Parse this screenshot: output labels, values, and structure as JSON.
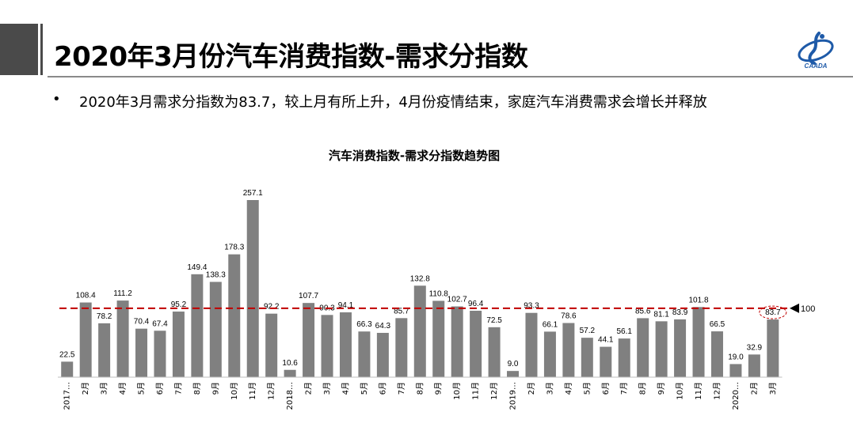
{
  "header": {
    "title": "2020年3月份汽车消费指数-需求分指数",
    "logo_icon": "caada-logo",
    "logo_text": "CAADA"
  },
  "bullet": {
    "symbol": "•",
    "text": "2020年3月需求分指数为83.7，较上月有所上升，4月份疫情结束，家庭汽车消费需求会增长并释放"
  },
  "colors": {
    "bar": "#808080",
    "reference_line": "#c00000",
    "highlight_circle": "#c00000",
    "accent": "#4a4a4a"
  },
  "chart_data": {
    "type": "bar",
    "title": "汽车消费指数-需求分指数趋势图",
    "xlabel": "",
    "ylabel": "",
    "ylim": [
      0,
      270
    ],
    "grid": false,
    "categories": [
      "2017…",
      "2月",
      "3月",
      "4月",
      "5月",
      "6月",
      "7月",
      "8月",
      "9月",
      "10月",
      "11月",
      "12月",
      "2018…",
      "2月",
      "3月",
      "4月",
      "5月",
      "6月",
      "7月",
      "8月",
      "9月",
      "10月",
      "11月",
      "12月",
      "2019…",
      "2月",
      "3月",
      "4月",
      "5月",
      "6月",
      "7月",
      "8月",
      "9月",
      "10月",
      "11月",
      "12月",
      "2020…",
      "2月",
      "3月"
    ],
    "values": [
      22.5,
      108.4,
      78.2,
      111.2,
      70.4,
      67.4,
      95.2,
      149.4,
      138.3,
      178.3,
      257.1,
      92.2,
      10.6,
      107.7,
      90.3,
      94.1,
      66.3,
      64.3,
      85.7,
      132.8,
      110.8,
      102.7,
      96.4,
      72.5,
      9.0,
      93.3,
      66.1,
      78.6,
      57.2,
      44.1,
      56.1,
      85.6,
      81.1,
      83.9,
      101.8,
      66.5,
      19.0,
      32.9,
      83.7
    ],
    "data_labels": [
      "22.5",
      "108.4",
      "78.2",
      "111.2",
      "70.4",
      "67.4",
      "95.2",
      "149.4",
      "138.3",
      "178.3",
      "257.1",
      "92.2",
      "10.6",
      "107.7",
      "90.3",
      "94.1",
      "66.3",
      "64.3",
      "85.7",
      "132.8",
      "110.8",
      "102.7",
      "96.4",
      "72.5",
      "9.0",
      "93.3",
      "66.1",
      "78.6",
      "57.2",
      "44.1",
      "56.1",
      "85.6",
      "81.1",
      "83.9",
      "101.8",
      "66.5",
      "19.0",
      "32.9",
      "83.7"
    ],
    "reference_line": {
      "value": 100,
      "label": "100",
      "style": "dashed"
    },
    "highlight_index": 38
  }
}
